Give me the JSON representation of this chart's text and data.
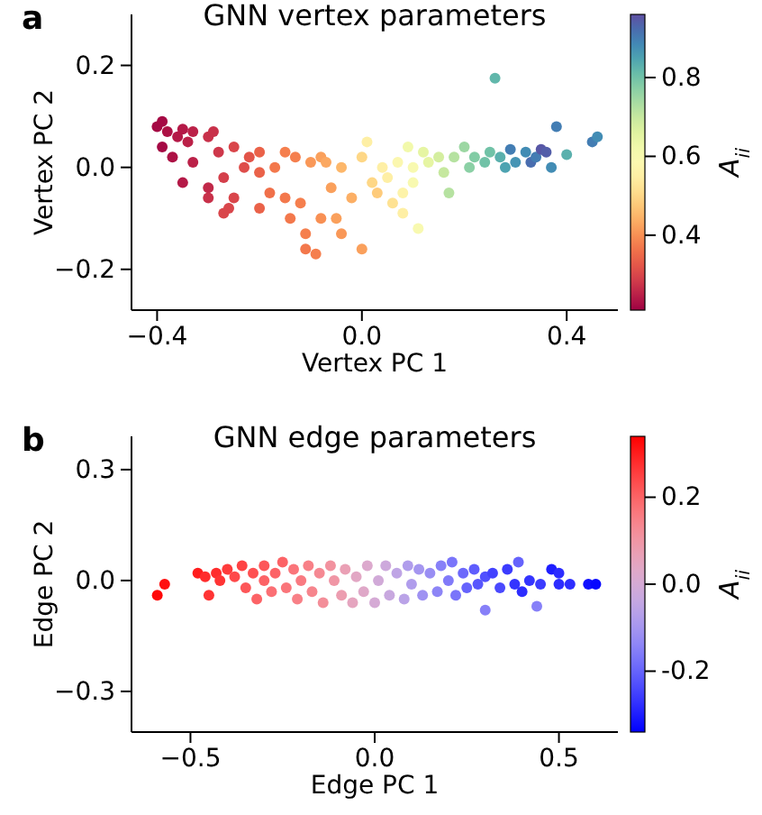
{
  "chart_data": [
    {
      "type": "scatter",
      "title": "GNN vertex parameters",
      "xlabel": "Vertex PC 1",
      "ylabel": "Vertex PC 2",
      "clabel": "A$_{ii}$",
      "annotations": [
        "a"
      ],
      "xlim": [
        -0.45,
        0.5
      ],
      "ylim": [
        -0.28,
        0.3
      ],
      "xticks": [
        {
          "value": -0.4,
          "label": "−0.4"
        },
        {
          "value": 0,
          "label": "0.0"
        },
        {
          "value": 0.4,
          "label": "0.4"
        }
      ],
      "yticks": [
        {
          "value": -0.2,
          "label": "−0.2"
        },
        {
          "value": 0,
          "label": "0.0"
        },
        {
          "value": 0.2,
          "label": "0.2"
        }
      ],
      "clim": [
        0.21,
        0.96
      ],
      "cticks": [
        {
          "value": 0.4,
          "label": "0.4"
        },
        {
          "value": 0.6,
          "label": "0.6"
        },
        {
          "value": 0.8,
          "label": "0.8"
        }
      ],
      "x": [
        -0.4,
        -0.39,
        -0.38,
        -0.39,
        -0.36,
        -0.35,
        -0.34,
        -0.33,
        -0.37,
        -0.33,
        -0.3,
        -0.3,
        -0.3,
        -0.35,
        -0.28,
        -0.27,
        -0.26,
        -0.27,
        -0.25,
        -0.25,
        -0.22,
        -0.2,
        -0.2,
        -0.18,
        -0.2,
        -0.17,
        -0.15,
        -0.15,
        -0.14,
        -0.12,
        -0.11,
        -0.11,
        -0.09,
        -0.08,
        -0.1,
        -0.08,
        -0.06,
        -0.05,
        -0.04,
        -0.04,
        -0.02,
        0.0,
        0.0,
        0.01,
        0.02,
        0.03,
        0.04,
        0.05,
        0.06,
        0.07,
        0.08,
        0.08,
        0.09,
        0.1,
        0.1,
        0.11,
        0.12,
        0.13,
        0.15,
        0.16,
        0.17,
        0.18,
        0.2,
        0.21,
        0.22,
        0.24,
        0.25,
        0.26,
        0.27,
        0.28,
        0.29,
        0.3,
        0.32,
        0.33,
        0.34,
        0.35,
        0.36,
        0.37,
        0.38,
        0.4,
        0.45,
        0.46,
        -0.29,
        -0.23,
        -0.13,
        -0.07
      ],
      "values": [
        0.08,
        0.09,
        0.07,
        0.04,
        0.06,
        0.075,
        0.05,
        0.07,
        0.02,
        0.01,
        0.06,
        -0.04,
        -0.06,
        -0.03,
        0.03,
        -0.02,
        -0.08,
        -0.09,
        0.04,
        -0.06,
        0.02,
        0.03,
        -0.01,
        -0.05,
        -0.08,
        0.0,
        0.03,
        -0.06,
        -0.1,
        -0.07,
        -0.13,
        -0.16,
        -0.17,
        -0.1,
        0.01,
        0.02,
        -0.04,
        -0.1,
        -0.13,
        0.0,
        -0.06,
        0.02,
        -0.16,
        0.05,
        -0.03,
        -0.05,
        0.0,
        -0.02,
        -0.07,
        0.01,
        -0.05,
        -0.09,
        0.04,
        0.0,
        -0.03,
        -0.12,
        0.03,
        0.01,
        0.02,
        -0.01,
        -0.05,
        0.02,
        0.04,
        0.0,
        0.02,
        0.01,
        0.03,
        0.175,
        0.02,
        0.0,
        0.035,
        0.01,
        0.03,
        0.01,
        0.02,
        0.035,
        0.03,
        0.0,
        0.08,
        0.025,
        0.05,
        0.06,
        0.07,
        0.0,
        0.02,
        0.01
      ],
      "cvalues": [
        0.22,
        0.22,
        0.23,
        0.22,
        0.24,
        0.24,
        0.25,
        0.25,
        0.23,
        0.25,
        0.27,
        0.26,
        0.27,
        0.24,
        0.28,
        0.29,
        0.3,
        0.3,
        0.3,
        0.3,
        0.32,
        0.34,
        0.34,
        0.36,
        0.34,
        0.37,
        0.38,
        0.37,
        0.37,
        0.38,
        0.38,
        0.37,
        0.38,
        0.4,
        0.41,
        0.42,
        0.42,
        0.42,
        0.41,
        0.45,
        0.44,
        0.5,
        0.42,
        0.55,
        0.5,
        0.48,
        0.55,
        0.55,
        0.52,
        0.58,
        0.56,
        0.55,
        0.62,
        0.6,
        0.6,
        0.6,
        0.65,
        0.65,
        0.68,
        0.7,
        0.72,
        0.72,
        0.75,
        0.77,
        0.78,
        0.8,
        0.8,
        0.82,
        0.83,
        0.85,
        0.9,
        0.87,
        0.88,
        0.92,
        0.9,
        0.95,
        0.94,
        0.88,
        0.9,
        0.83,
        0.9,
        0.88,
        0.27,
        0.31,
        0.38,
        0.43
      ]
    },
    {
      "type": "scatter",
      "title": "GNN edge parameters",
      "xlabel": "Edge PC 1",
      "ylabel": "Edge PC 2",
      "clabel": "A$_{ii}$",
      "annotations": [
        "b"
      ],
      "xlim": [
        -0.66,
        0.66
      ],
      "ylim": [
        -0.41,
        0.39
      ],
      "xticks": [
        {
          "value": -0.5,
          "label": "−0.5"
        },
        {
          "value": 0,
          "label": "0.0"
        },
        {
          "value": 0.5,
          "label": "0.5"
        }
      ],
      "yticks": [
        {
          "value": -0.3,
          "label": "−0.3"
        },
        {
          "value": 0,
          "label": "0.0"
        },
        {
          "value": 0.3,
          "label": "0.3"
        }
      ],
      "clim": [
        -0.34,
        0.34
      ],
      "cticks": [
        {
          "value": -0.2,
          "label": "-0.2"
        },
        {
          "value": 0,
          "label": "0.0"
        },
        {
          "value": 0.2,
          "label": "0.2"
        }
      ],
      "x": [
        -0.59,
        -0.57,
        -0.48,
        -0.46,
        -0.45,
        -0.43,
        -0.42,
        -0.4,
        -0.38,
        -0.36,
        -0.35,
        -0.33,
        -0.32,
        -0.3,
        -0.3,
        -0.28,
        -0.27,
        -0.25,
        -0.24,
        -0.22,
        -0.21,
        -0.2,
        -0.18,
        -0.17,
        -0.15,
        -0.14,
        -0.12,
        -0.11,
        -0.09,
        -0.08,
        -0.06,
        -0.05,
        -0.03,
        -0.02,
        0.0,
        0.01,
        0.03,
        0.04,
        0.06,
        0.08,
        0.09,
        0.1,
        0.12,
        0.13,
        0.15,
        0.17,
        0.18,
        0.2,
        0.21,
        0.22,
        0.24,
        0.25,
        0.27,
        0.28,
        0.3,
        0.3,
        0.32,
        0.34,
        0.36,
        0.38,
        0.39,
        0.4,
        0.42,
        0.44,
        0.45,
        0.48,
        0.5,
        0.5,
        0.53,
        0.58,
        0.6
      ],
      "values": [
        -0.04,
        -0.01,
        0.02,
        0.01,
        -0.04,
        0.02,
        0.0,
        0.03,
        0.01,
        0.04,
        -0.02,
        0.02,
        -0.05,
        0.04,
        0.0,
        -0.03,
        0.02,
        0.05,
        -0.02,
        0.03,
        -0.05,
        0.0,
        0.04,
        -0.03,
        0.02,
        -0.06,
        0.04,
        0.0,
        -0.04,
        0.03,
        -0.06,
        0.01,
        -0.03,
        0.04,
        -0.06,
        0.0,
        0.04,
        -0.04,
        0.02,
        -0.05,
        0.04,
        -0.01,
        0.03,
        -0.04,
        0.02,
        -0.03,
        0.04,
        0.0,
        0.05,
        -0.04,
        0.02,
        -0.02,
        0.03,
        -0.01,
        0.01,
        -0.08,
        0.02,
        -0.02,
        0.03,
        -0.01,
        0.05,
        -0.03,
        0.0,
        -0.07,
        -0.01,
        0.03,
        0.02,
        -0.01,
        -0.01,
        -0.01,
        -0.01
      ],
      "cvalues": [
        0.33,
        0.32,
        0.3,
        0.28,
        0.27,
        0.28,
        0.27,
        0.26,
        0.24,
        0.25,
        0.22,
        0.23,
        0.2,
        0.22,
        0.2,
        0.18,
        0.2,
        0.2,
        0.17,
        0.17,
        0.15,
        0.16,
        0.15,
        0.14,
        0.13,
        0.12,
        0.11,
        0.1,
        0.08,
        0.07,
        0.05,
        0.04,
        0.03,
        0.02,
        0.0,
        -0.01,
        -0.02,
        -0.03,
        -0.05,
        -0.06,
        -0.08,
        -0.08,
        -0.1,
        -0.11,
        -0.12,
        -0.14,
        -0.15,
        -0.16,
        -0.17,
        -0.17,
        -0.19,
        -0.2,
        -0.21,
        -0.22,
        -0.23,
        -0.15,
        -0.25,
        -0.24,
        -0.26,
        -0.27,
        -0.2,
        -0.28,
        -0.27,
        -0.15,
        -0.26,
        -0.3,
        -0.28,
        -0.28,
        -0.28,
        -0.32,
        -0.33
      ]
    }
  ]
}
